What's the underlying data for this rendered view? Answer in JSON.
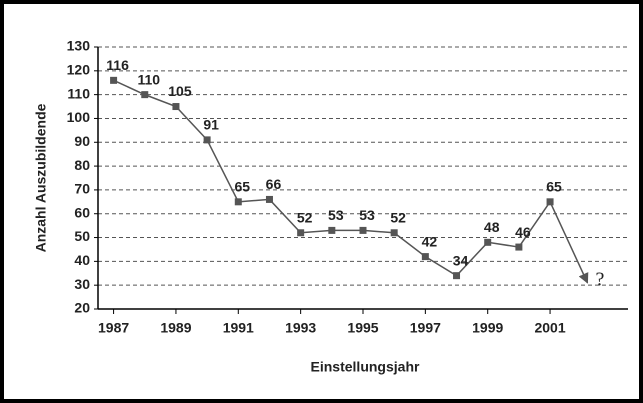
{
  "chart_data": {
    "type": "line",
    "x": [
      1987,
      1988,
      1989,
      1990,
      1991,
      1992,
      1993,
      1994,
      1995,
      1996,
      1997,
      1998,
      1999,
      2000,
      2001
    ],
    "series": [
      {
        "name": "Anzahl Auszubildende",
        "color": "#555555",
        "values": [
          116,
          110,
          105,
          91,
          65,
          66,
          52,
          53,
          53,
          52,
          42,
          34,
          48,
          46,
          65
        ]
      }
    ],
    "xlabel": "Einstellungsjahr",
    "ylabel": "Anzahl Auszubildende",
    "xlim": [
      1986.5,
      2003.5
    ],
    "xticks": [
      1987,
      1989,
      1991,
      1993,
      1995,
      1997,
      1999,
      2001
    ],
    "ylim": [
      20,
      130
    ],
    "yticks": [
      20,
      30,
      40,
      50,
      60,
      70,
      80,
      90,
      100,
      110,
      120,
      130
    ],
    "grid": true,
    "annotation": {
      "text": "?",
      "x": 2002.2,
      "y": 31
    }
  }
}
